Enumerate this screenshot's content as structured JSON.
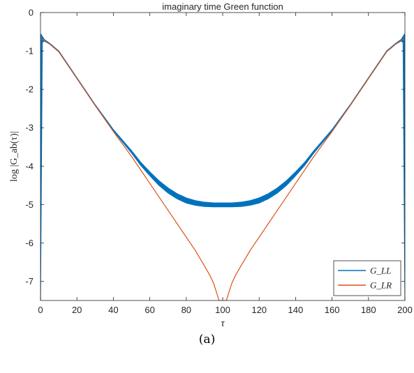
{
  "caption": "(a)",
  "chart_data": {
    "type": "line",
    "title": "imaginary time Green function",
    "xlabel": "τ",
    "ylabel": "log |G_ab(τ)|",
    "xlim": [
      0,
      200
    ],
    "ylim": [
      -7.5,
      0
    ],
    "xticks": [
      0,
      20,
      40,
      60,
      80,
      100,
      120,
      140,
      160,
      180,
      200
    ],
    "yticks": [
      0,
      -1,
      -2,
      -3,
      -4,
      -5,
      -6,
      -7
    ],
    "xtick_labels": [
      "0",
      "20",
      "40",
      "60",
      "80",
      "100",
      "120",
      "140",
      "160",
      "180",
      "200"
    ],
    "ytick_labels": [
      "0",
      "-1",
      "-2",
      "-3",
      "-4",
      "-5",
      "-6",
      "-7"
    ],
    "grid": false,
    "legend_position": "bottom-right",
    "series": [
      {
        "name": "G_LL",
        "color": "#0072BD",
        "band": true,
        "x": [
          0,
          1,
          2,
          5,
          10,
          20,
          30,
          40,
          50,
          55,
          60,
          65,
          70,
          75,
          80,
          85,
          90,
          95,
          100,
          105,
          110,
          115,
          120,
          125,
          130,
          135,
          140,
          145,
          150,
          160,
          170,
          180,
          190,
          195,
          198,
          199,
          200
        ],
        "y_upper": [
          -0.55,
          -0.62,
          -0.7,
          -0.8,
          -1.0,
          -1.7,
          -2.4,
          -3.05,
          -3.6,
          -3.9,
          -4.15,
          -4.38,
          -4.57,
          -4.72,
          -4.83,
          -4.9,
          -4.94,
          -4.96,
          -4.96,
          -4.96,
          -4.94,
          -4.9,
          -4.83,
          -4.72,
          -4.57,
          -4.38,
          -4.15,
          -3.9,
          -3.6,
          -3.05,
          -2.4,
          -1.7,
          -1.0,
          -0.8,
          -0.7,
          -0.62,
          -0.55
        ],
        "y_lower": [
          -7.5,
          -0.78,
          -0.74,
          -0.82,
          -1.02,
          -1.72,
          -2.42,
          -3.08,
          -3.66,
          -3.98,
          -4.25,
          -4.5,
          -4.7,
          -4.85,
          -4.96,
          -5.02,
          -5.05,
          -5.06,
          -5.06,
          -5.06,
          -5.05,
          -5.02,
          -4.96,
          -4.85,
          -4.7,
          -4.5,
          -4.25,
          -3.98,
          -3.66,
          -3.08,
          -2.42,
          -1.72,
          -1.02,
          -0.82,
          -0.74,
          -0.78,
          -7.5
        ]
      },
      {
        "name": "G_LR",
        "color": "#D95319",
        "x": [
          0,
          2,
          5,
          10,
          20,
          30,
          40,
          50,
          55,
          60,
          65,
          70,
          75,
          80,
          85,
          90,
          93,
          95,
          97,
          98,
          99,
          101,
          102,
          103,
          105,
          107,
          110,
          115,
          120,
          125,
          130,
          135,
          140,
          145,
          150,
          160,
          170,
          180,
          190,
          195,
          198,
          200
        ],
        "y": [
          -0.68,
          -0.72,
          -0.82,
          -1.02,
          -1.72,
          -2.42,
          -3.1,
          -3.75,
          -4.1,
          -4.45,
          -4.8,
          -5.15,
          -5.5,
          -5.85,
          -6.2,
          -6.6,
          -6.85,
          -7.05,
          -7.35,
          -7.5,
          -7.5,
          -7.5,
          -7.5,
          -7.35,
          -7.05,
          -6.85,
          -6.6,
          -6.2,
          -5.85,
          -5.5,
          -5.15,
          -4.8,
          -4.45,
          -4.1,
          -3.75,
          -3.1,
          -2.42,
          -1.72,
          -1.02,
          -0.82,
          -0.72,
          -0.68
        ]
      }
    ]
  }
}
